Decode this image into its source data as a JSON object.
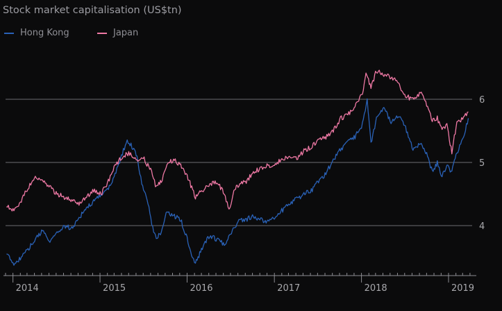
{
  "colors": {
    "hong_kong": "#2a62b8",
    "japan": "#ef79a5",
    "grid": "#6d6d72",
    "text": "#a9a9ad",
    "background": "#0b0b0c"
  },
  "chart_data": {
    "type": "line",
    "title": "Stock market capitalisation (US$tn)",
    "xlabel": "",
    "ylabel": "",
    "x_ticks": [
      "2014",
      "2015",
      "2016",
      "2017",
      "2018",
      "2019"
    ],
    "y_ticks": [
      "4",
      "5",
      "6"
    ],
    "ylim": [
      3.3,
      6.9
    ],
    "y_axis_side": "right",
    "grid": "horizontal",
    "legend_position": "top-left",
    "series": [
      {
        "name": "Hong Kong",
        "color": "#2a62b8",
        "x": [
          "2013-12-05",
          "2014-01-05",
          "2014-02-05",
          "2014-03-05",
          "2014-04-05",
          "2014-05-05",
          "2014-06-05",
          "2014-07-05",
          "2014-08-05",
          "2014-09-05",
          "2014-10-05",
          "2014-11-05",
          "2014-12-05",
          "2015-01-05",
          "2015-02-05",
          "2015-03-05",
          "2015-04-05",
          "2015-04-25",
          "2015-05-15",
          "2015-06-05",
          "2015-06-25",
          "2015-07-10",
          "2015-07-25",
          "2015-08-10",
          "2015-08-25",
          "2015-09-15",
          "2015-10-05",
          "2015-11-05",
          "2015-12-05",
          "2016-01-05",
          "2016-01-20",
          "2016-02-05",
          "2016-03-05",
          "2016-04-05",
          "2016-05-05",
          "2016-06-05",
          "2016-07-05",
          "2016-08-05",
          "2016-09-05",
          "2016-10-05",
          "2016-11-05",
          "2016-12-05",
          "2017-01-05",
          "2017-02-05",
          "2017-03-05",
          "2017-04-05",
          "2017-05-05",
          "2017-06-05",
          "2017-07-05",
          "2017-08-05",
          "2017-09-05",
          "2017-10-05",
          "2017-11-05",
          "2017-12-05",
          "2018-01-05",
          "2018-01-25",
          "2018-02-10",
          "2018-03-05",
          "2018-04-05",
          "2018-05-05",
          "2018-06-05",
          "2018-07-05",
          "2018-08-05",
          "2018-09-05",
          "2018-10-05",
          "2018-10-25",
          "2018-11-15",
          "2018-12-05",
          "2018-12-25",
          "2019-01-15",
          "2019-02-05",
          "2019-03-05",
          "2019-03-25"
        ],
        "values": [
          3.55,
          3.4,
          3.5,
          3.62,
          3.78,
          3.92,
          3.75,
          3.88,
          4.0,
          3.95,
          4.12,
          4.28,
          4.38,
          4.48,
          4.6,
          4.8,
          5.15,
          5.35,
          5.25,
          5.1,
          4.65,
          4.55,
          4.3,
          3.95,
          3.8,
          3.9,
          4.2,
          4.15,
          4.1,
          3.75,
          3.5,
          3.4,
          3.65,
          3.85,
          3.78,
          3.7,
          3.9,
          4.08,
          4.1,
          4.15,
          4.1,
          4.05,
          4.15,
          4.25,
          4.35,
          4.42,
          4.5,
          4.55,
          4.7,
          4.82,
          5.05,
          5.2,
          5.32,
          5.4,
          5.6,
          6.0,
          5.3,
          5.7,
          5.85,
          5.65,
          5.75,
          5.55,
          5.2,
          5.3,
          5.1,
          4.85,
          5.0,
          4.78,
          4.95,
          4.85,
          5.15,
          5.4,
          5.7
        ]
      },
      {
        "name": "Japan",
        "color": "#ef79a5",
        "x": [
          "2013-12-05",
          "2014-01-05",
          "2014-02-05",
          "2014-03-05",
          "2014-04-05",
          "2014-05-05",
          "2014-06-05",
          "2014-07-05",
          "2014-08-05",
          "2014-09-05",
          "2014-10-05",
          "2014-11-05",
          "2014-12-05",
          "2015-01-05",
          "2015-02-05",
          "2015-03-05",
          "2015-04-05",
          "2015-05-05",
          "2015-06-05",
          "2015-07-05",
          "2015-08-05",
          "2015-08-25",
          "2015-09-15",
          "2015-10-05",
          "2015-11-05",
          "2015-12-05",
          "2016-01-05",
          "2016-02-05",
          "2016-03-05",
          "2016-04-05",
          "2016-05-05",
          "2016-06-05",
          "2016-06-25",
          "2016-07-15",
          "2016-08-05",
          "2016-09-05",
          "2016-10-05",
          "2016-11-05",
          "2016-12-05",
          "2017-01-05",
          "2017-02-05",
          "2017-03-05",
          "2017-04-05",
          "2017-05-05",
          "2017-06-05",
          "2017-07-05",
          "2017-08-05",
          "2017-09-05",
          "2017-10-05",
          "2017-11-05",
          "2017-12-05",
          "2018-01-05",
          "2018-01-20",
          "2018-02-10",
          "2018-03-05",
          "2018-04-05",
          "2018-05-05",
          "2018-06-05",
          "2018-07-05",
          "2018-08-05",
          "2018-09-05",
          "2018-10-05",
          "2018-10-25",
          "2018-11-15",
          "2018-12-05",
          "2018-12-25",
          "2019-01-15",
          "2019-02-05",
          "2019-03-05",
          "2019-03-25"
        ],
        "values": [
          4.3,
          4.25,
          4.4,
          4.6,
          4.75,
          4.7,
          4.6,
          4.5,
          4.45,
          4.4,
          4.35,
          4.45,
          4.55,
          4.5,
          4.7,
          4.95,
          5.1,
          5.15,
          5.05,
          5.05,
          4.85,
          4.6,
          4.7,
          4.95,
          5.05,
          4.95,
          4.75,
          4.45,
          4.55,
          4.65,
          4.7,
          4.5,
          4.25,
          4.55,
          4.65,
          4.7,
          4.85,
          4.9,
          4.95,
          4.98,
          5.05,
          5.1,
          5.05,
          5.18,
          5.25,
          5.35,
          5.4,
          5.5,
          5.7,
          5.75,
          5.9,
          6.1,
          6.4,
          6.2,
          6.45,
          6.4,
          6.35,
          6.25,
          6.05,
          6.0,
          6.1,
          5.9,
          5.65,
          5.7,
          5.5,
          5.6,
          5.15,
          5.65,
          5.7,
          5.8
        ]
      }
    ]
  }
}
